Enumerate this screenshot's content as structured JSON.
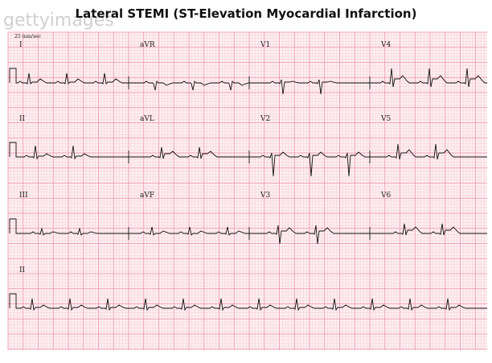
{
  "title": "Lateral STEMI (ST-Elevation Myocardial Infarction)",
  "watermark": "gettyimages",
  "speed_label": "25 mm/sec",
  "leads": [
    "I",
    "aVR",
    "V1",
    "V4",
    "II",
    "aVL",
    "V2",
    "V5",
    "III",
    "aVF",
    "V3",
    "V6",
    "II"
  ]
}
